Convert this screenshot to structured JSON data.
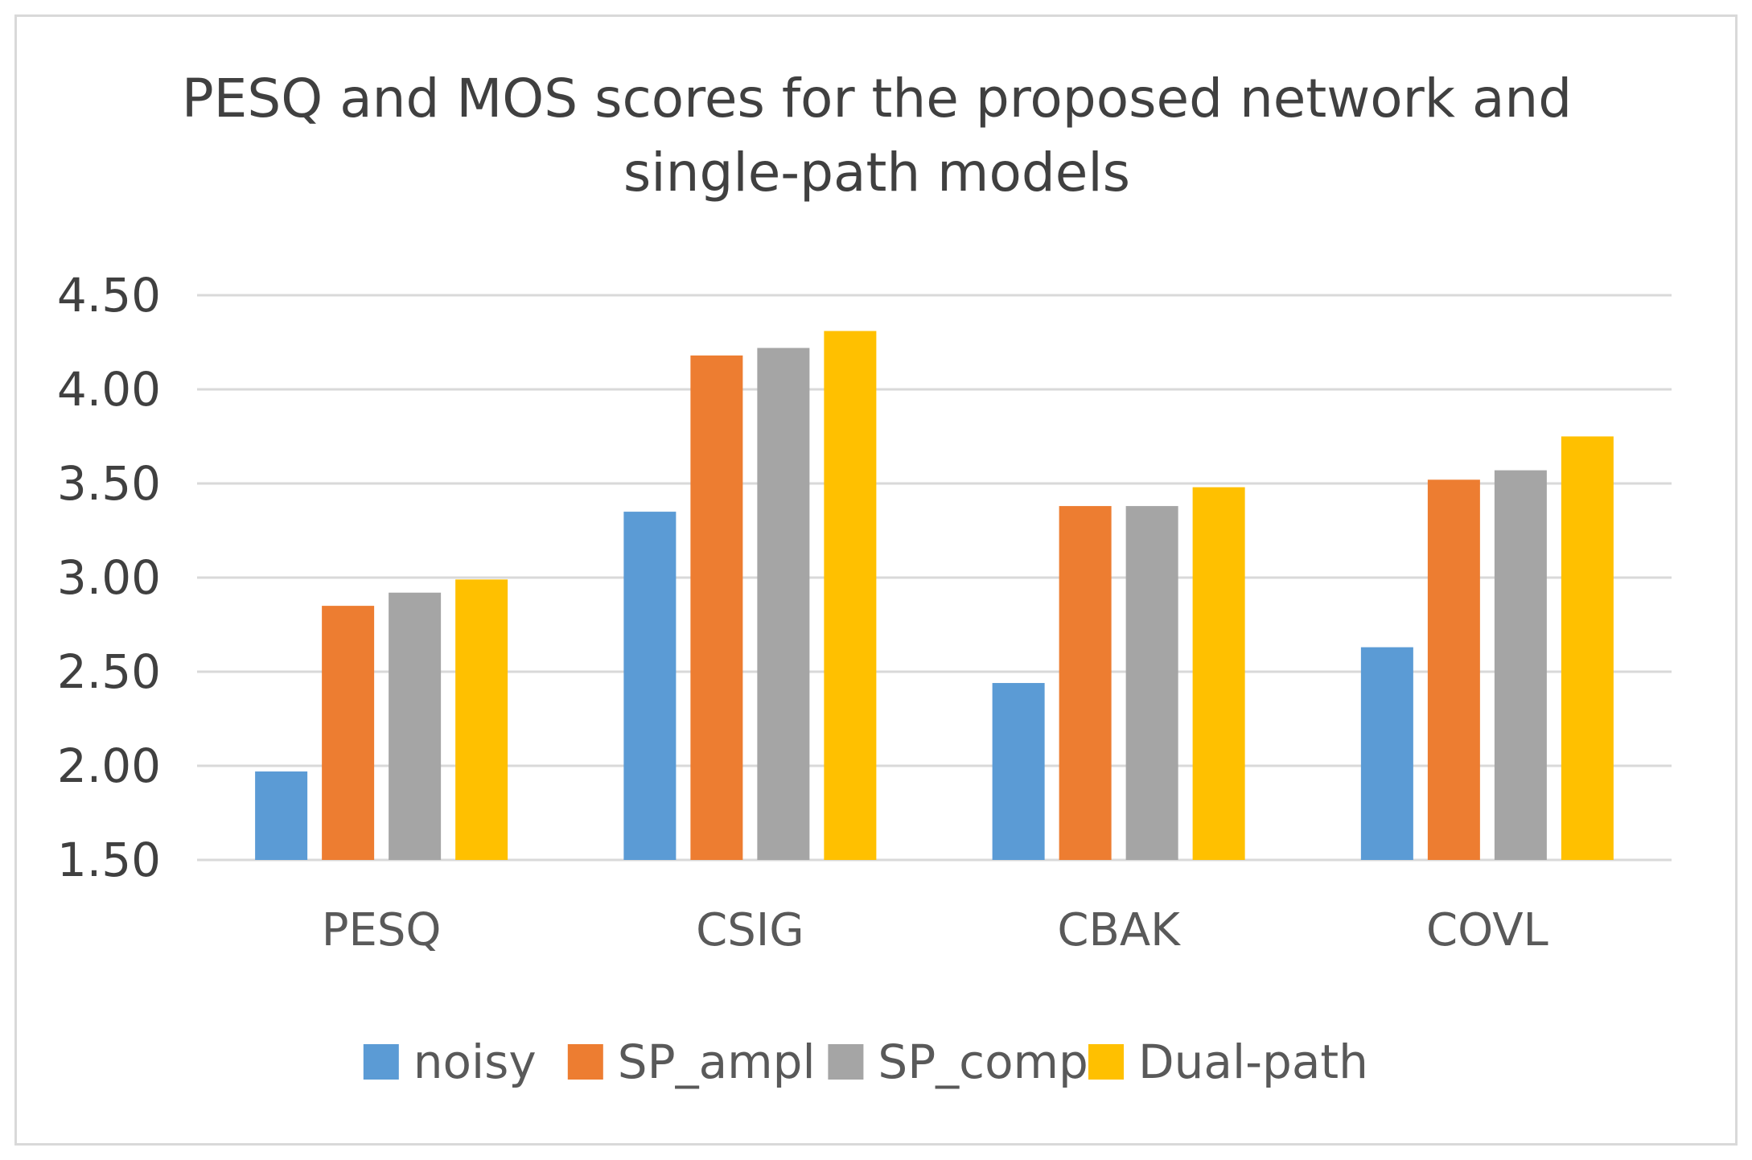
{
  "chart_data": {
    "type": "bar",
    "title_lines": [
      "PESQ and MOS scores for the proposed network and",
      "single-path models"
    ],
    "categories": [
      "PESQ",
      "CSIG",
      "CBAK",
      "COVL"
    ],
    "series": [
      {
        "name": "noisy",
        "color": "#5b9bd5",
        "values": [
          1.97,
          3.35,
          2.44,
          2.63
        ]
      },
      {
        "name": "SP_ampl",
        "color": "#ed7d31",
        "values": [
          2.85,
          4.18,
          3.38,
          3.52
        ]
      },
      {
        "name": "SP_comp",
        "color": "#a5a5a5",
        "values": [
          2.92,
          4.22,
          3.38,
          3.57
        ]
      },
      {
        "name": "Dual-path",
        "color": "#ffc000",
        "values": [
          2.99,
          4.31,
          3.48,
          3.75
        ]
      }
    ],
    "ylim": [
      1.5,
      4.5
    ],
    "yticks": [
      "1.50",
      "2.00",
      "2.50",
      "3.00",
      "3.50",
      "4.00",
      "4.50"
    ],
    "xlabel": "",
    "ylabel": "",
    "grid": true,
    "legend_position": "bottom"
  }
}
